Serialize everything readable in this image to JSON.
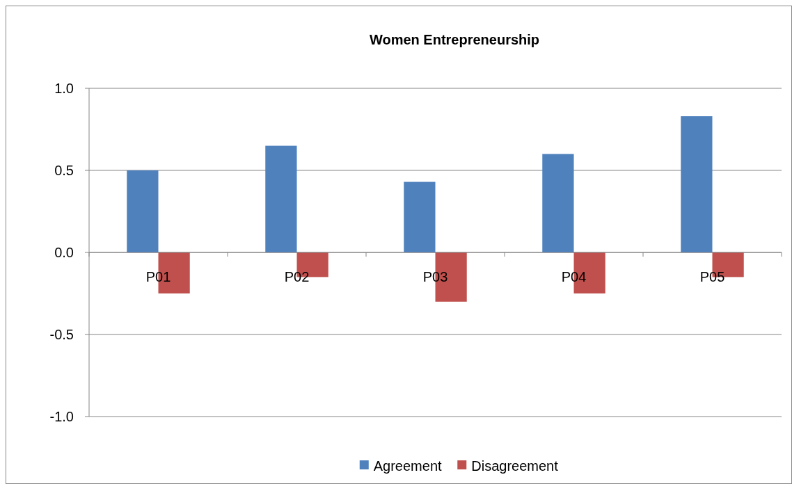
{
  "chart_data": {
    "type": "bar",
    "title": "Women Entrepreneurship",
    "categories": [
      "P01",
      "P02",
      "P03",
      "P04",
      "P05"
    ],
    "series": [
      {
        "name": "Agreement",
        "color": "#4f81bd",
        "values": [
          0.5,
          0.65,
          0.43,
          0.6,
          0.83
        ]
      },
      {
        "name": "Disagreement",
        "color": "#c0504d",
        "values": [
          -0.25,
          -0.15,
          -0.3,
          -0.25,
          -0.15
        ]
      }
    ],
    "ylim": [
      -1,
      1
    ],
    "yticks": [
      {
        "value": -1,
        "label": "-1.0"
      },
      {
        "value": -0.5,
        "label": "-0.5"
      },
      {
        "value": 0,
        "label": "0.0"
      },
      {
        "value": 0.5,
        "label": "0.5"
      },
      {
        "value": 1,
        "label": "1.0"
      }
    ],
    "grid": "y",
    "legend": "bottom"
  }
}
